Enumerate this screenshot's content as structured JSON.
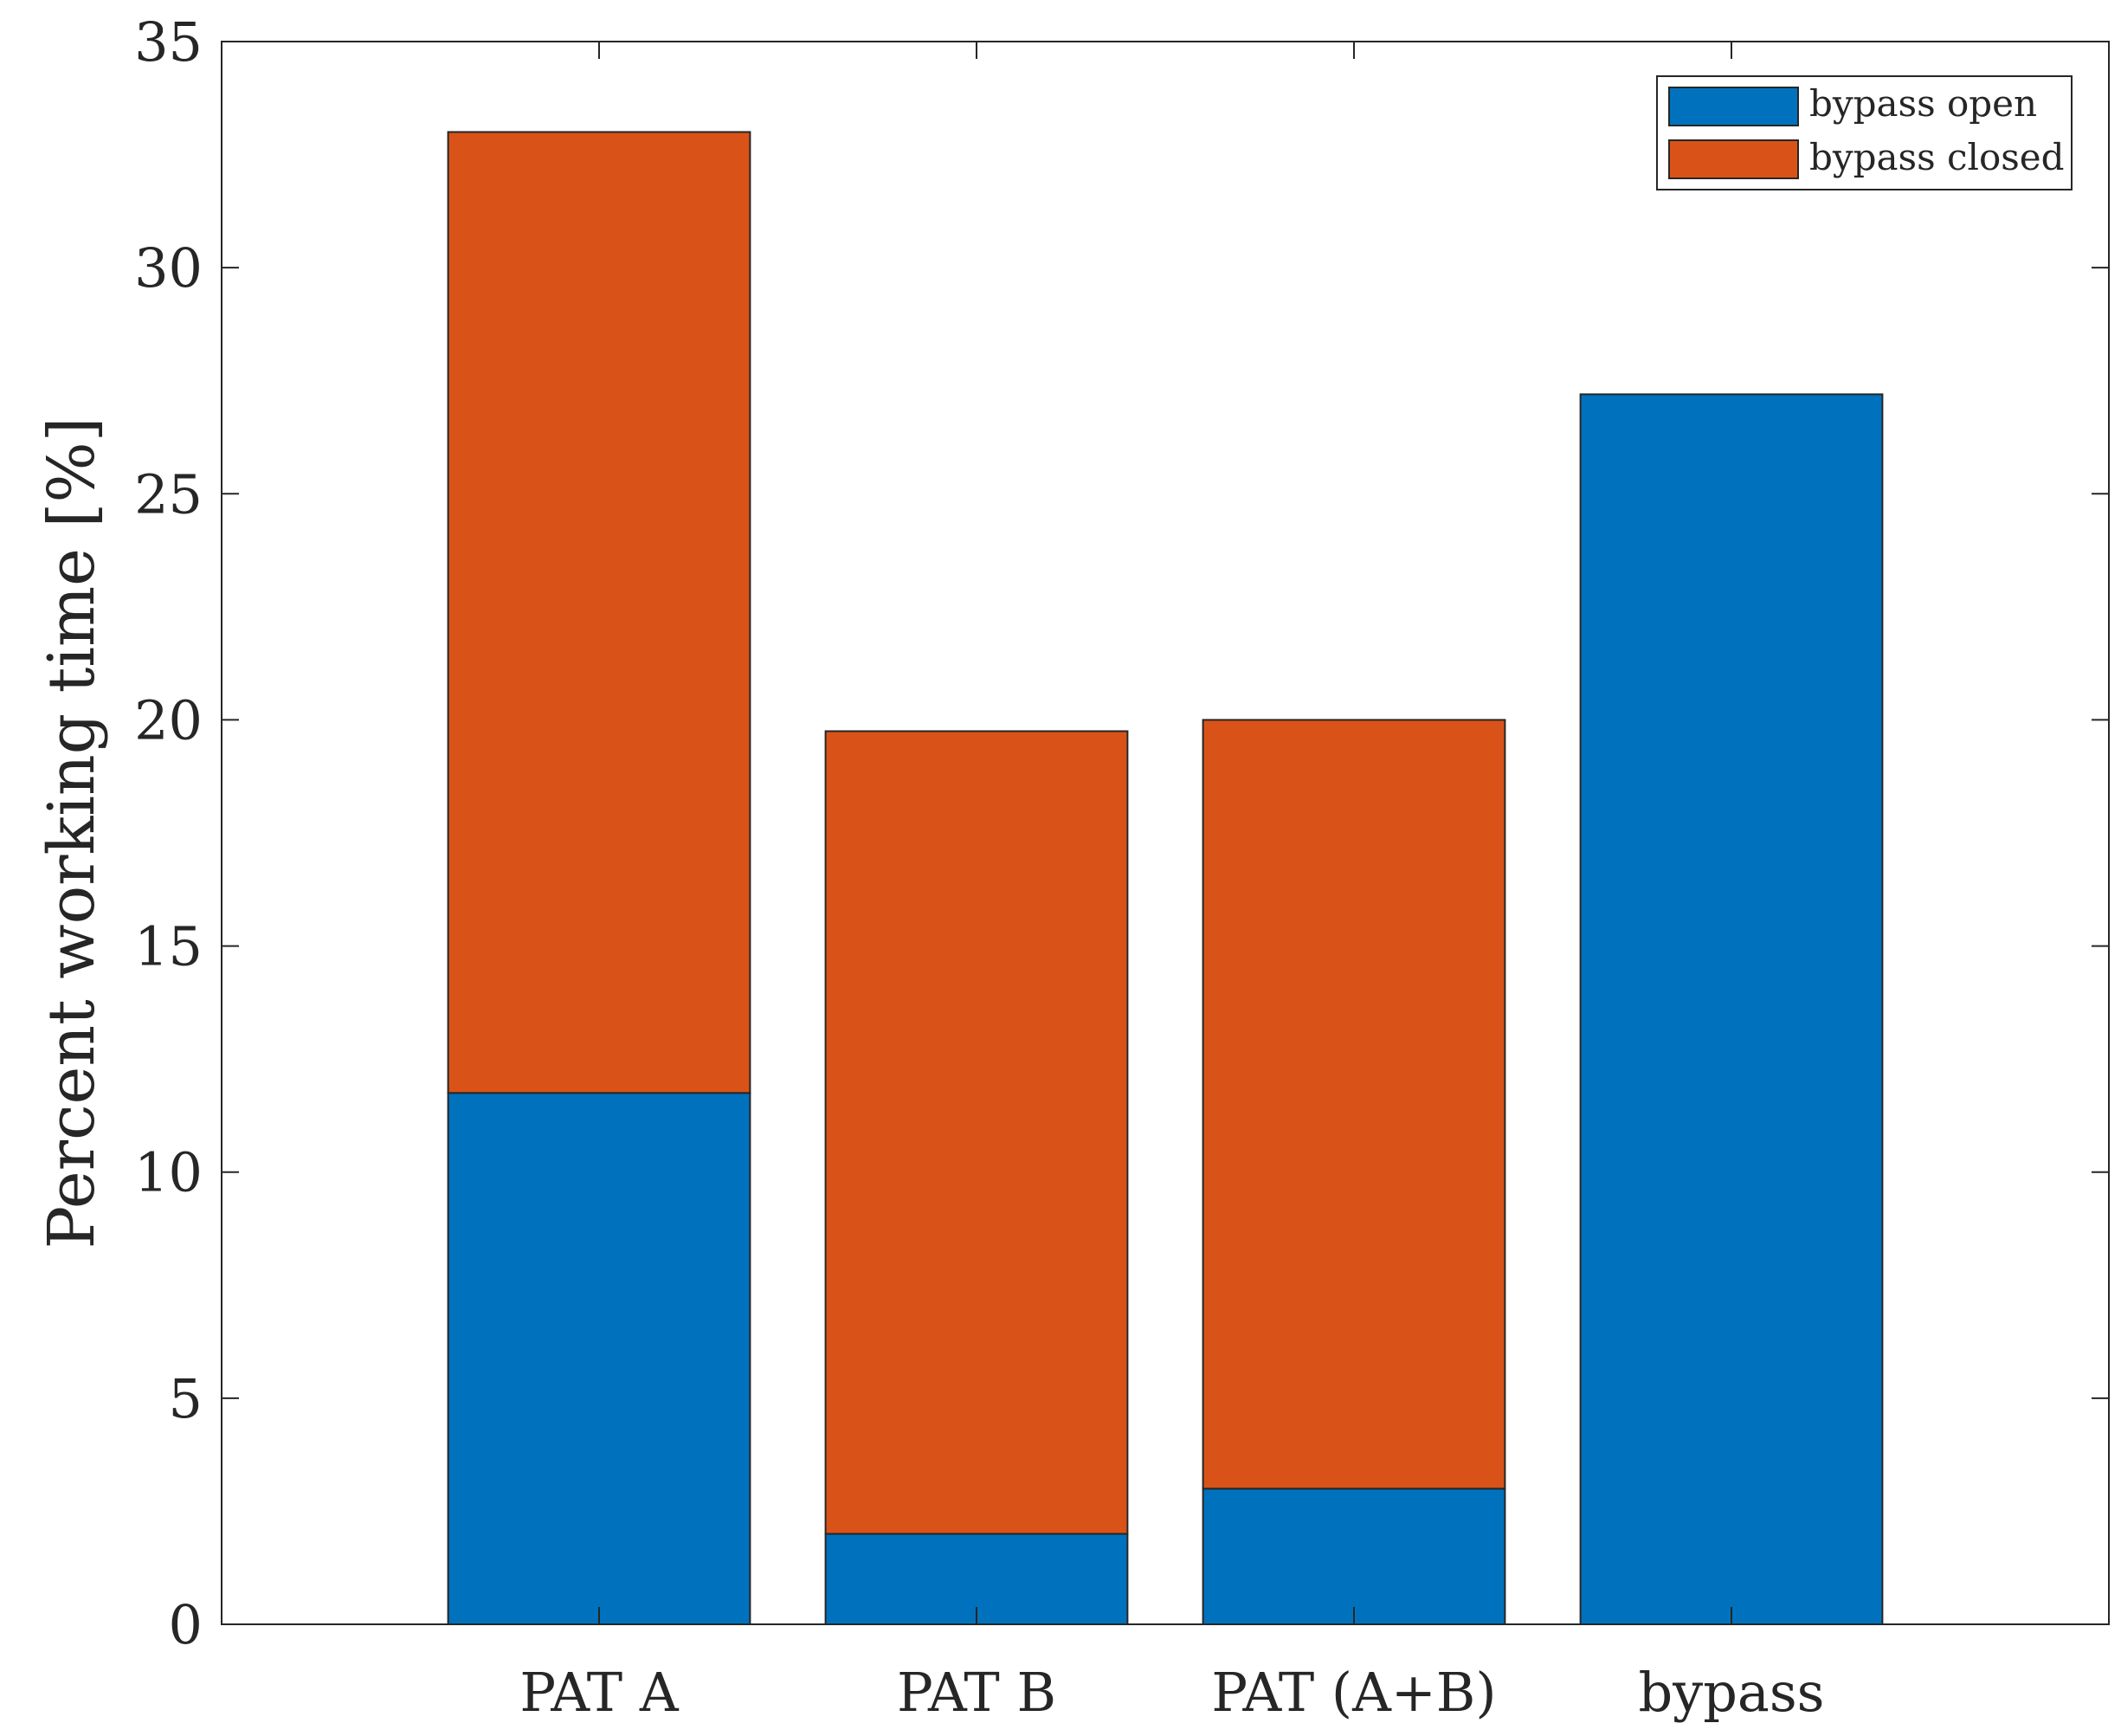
{
  "chart_data": {
    "type": "bar",
    "stacked": true,
    "categories": [
      "PAT A",
      "PAT B",
      "PAT (A+B)",
      "bypass"
    ],
    "series": [
      {
        "name": "bypass open",
        "values": [
          11.75,
          2.0,
          3.0,
          27.2
        ],
        "color": "#0072bd"
      },
      {
        "name": "bypass closed",
        "values": [
          21.25,
          17.75,
          17.0,
          0
        ],
        "color": "#d95319"
      }
    ],
    "title": "",
    "xlabel": "",
    "ylabel": "Percent working time [%]",
    "ylim": [
      0,
      35
    ],
    "yticks": [
      0,
      5,
      10,
      15,
      20,
      25,
      30,
      35
    ],
    "xlim": [
      0,
      5
    ],
    "grid": false,
    "legend_position": "top-right"
  }
}
